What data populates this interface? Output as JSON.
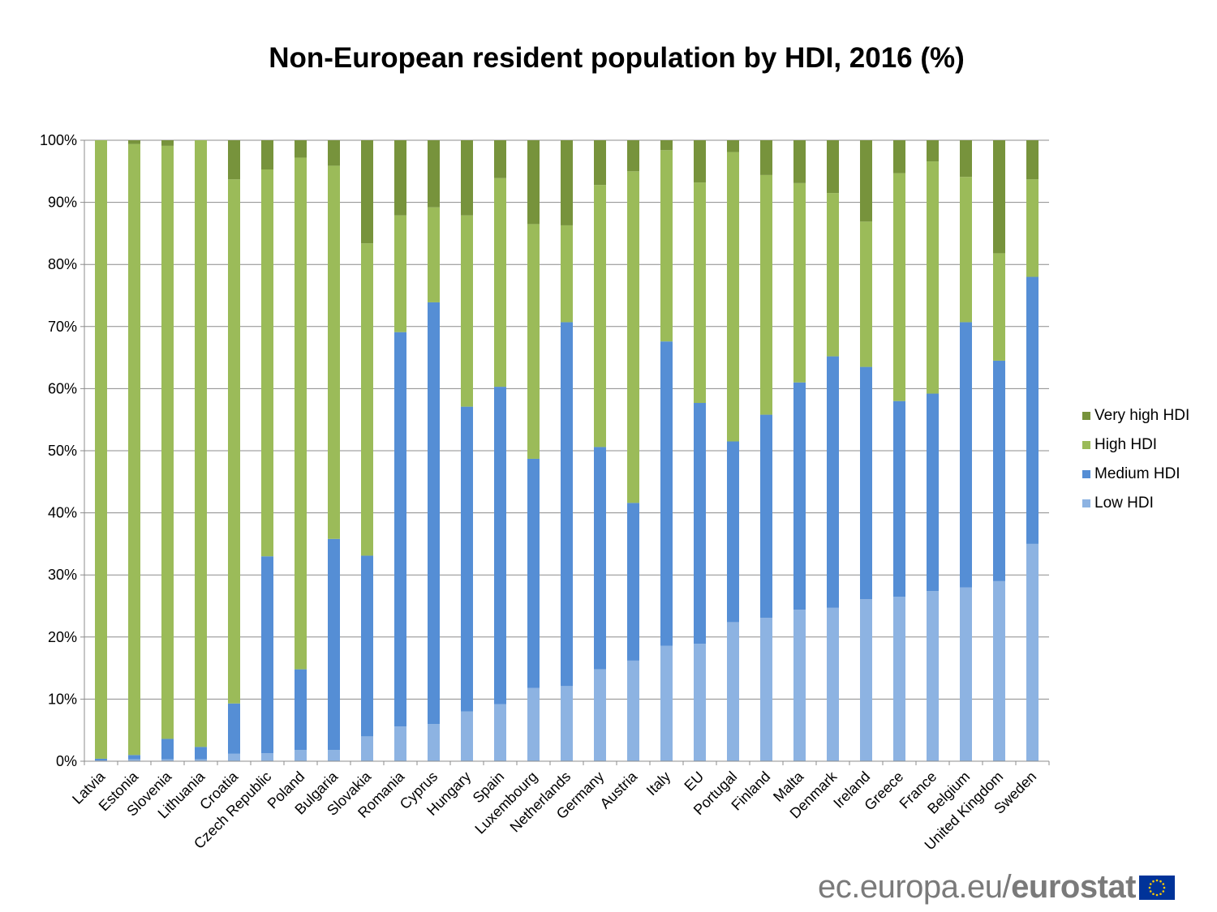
{
  "chart_data": {
    "type": "bar",
    "stacked": true,
    "title": "Non-European resident population by HDI, 2016 (%)",
    "xlabel": "",
    "ylabel": "",
    "ylim": [
      0,
      100
    ],
    "yticks": [
      "0%",
      "10%",
      "20%",
      "30%",
      "40%",
      "50%",
      "60%",
      "70%",
      "80%",
      "90%",
      "100%"
    ],
    "grid": true,
    "legend_position": "right",
    "categories": [
      "Latvia",
      "Estonia",
      "Slovenia",
      "Lithuania",
      "Croatia",
      "Czech Republic",
      "Poland",
      "Bulgaria",
      "Slovakia",
      "Romania",
      "Cyprus",
      "Hungary",
      "Spain",
      "Luxembourg",
      "Netherlands",
      "Germany",
      "Austria",
      "Italy",
      "EU",
      "Portugal",
      "Finland",
      "Malta",
      "Denmark",
      "Ireland",
      "Greece",
      "France",
      "Belgium",
      "United Kingdom",
      "Sweden"
    ],
    "series": [
      {
        "name": "Low HDI",
        "color": "#8db3e2",
        "values": [
          0.1,
          0.3,
          0.3,
          0.3,
          1.2,
          1.3,
          1.8,
          1.8,
          4.0,
          5.6,
          6.0,
          8.0,
          9.2,
          11.8,
          12.1,
          14.8,
          16.2,
          18.6,
          18.9,
          22.4,
          23.1,
          24.4,
          24.7,
          26.1,
          26.5,
          27.4,
          28.0,
          29.0,
          35.0
        ]
      },
      {
        "name": "Medium HDI",
        "color": "#558ed5",
        "values": [
          0.3,
          0.7,
          3.3,
          2.0,
          8.1,
          31.7,
          13.0,
          34.0,
          29.1,
          63.5,
          67.9,
          49.1,
          51.1,
          36.9,
          58.6,
          35.8,
          25.4,
          49.0,
          38.8,
          29.1,
          32.7,
          36.6,
          40.5,
          37.4,
          31.5,
          31.8,
          42.7,
          35.5,
          43.0
        ]
      },
      {
        "name": "High HDI",
        "color": "#9bbb59",
        "values": [
          99.6,
          98.4,
          95.5,
          97.7,
          84.4,
          62.3,
          82.4,
          60.1,
          50.3,
          18.8,
          15.3,
          30.8,
          33.6,
          37.8,
          15.6,
          42.2,
          53.4,
          30.8,
          35.5,
          46.6,
          38.6,
          32.1,
          26.3,
          23.4,
          36.7,
          37.4,
          23.4,
          17.3,
          15.7
        ]
      },
      {
        "name": "Very high HDI",
        "color": "#77933c",
        "values": [
          0.0,
          0.6,
          0.9,
          0.0,
          6.3,
          4.7,
          2.8,
          4.1,
          16.6,
          12.1,
          10.8,
          12.1,
          6.1,
          13.5,
          13.7,
          7.2,
          5.0,
          1.6,
          6.8,
          1.9,
          5.6,
          6.9,
          8.5,
          13.1,
          5.3,
          3.4,
          5.9,
          18.2,
          6.3
        ]
      }
    ]
  },
  "legend": {
    "items": [
      {
        "label": "Very high HDI",
        "color": "#77933c"
      },
      {
        "label": "High HDI",
        "color": "#9bbb59"
      },
      {
        "label": "Medium HDI",
        "color": "#558ed5"
      },
      {
        "label": "Low HDI",
        "color": "#8db3e2"
      }
    ]
  },
  "branding": {
    "url_text": "ec.europa.eu/",
    "name_text": "eurostat",
    "flag_colors": {
      "background": "#003399",
      "stars": "#ffcc00"
    }
  }
}
